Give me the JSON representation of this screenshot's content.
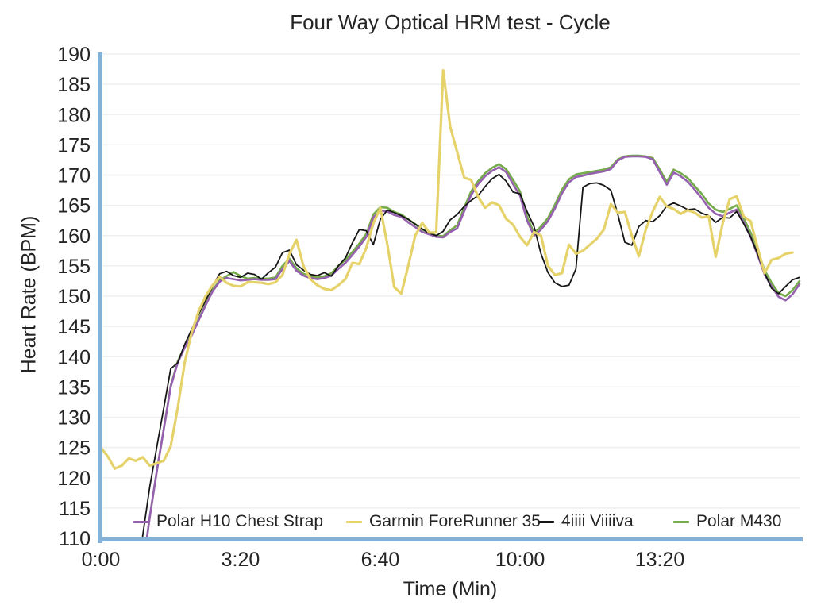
{
  "title": "Four Way Optical HRM test - Cycle",
  "axes": {
    "y_label": "Heart Rate (BPM)",
    "x_label": "Time (Min)",
    "y_tick_values": [
      110,
      115,
      120,
      125,
      130,
      135,
      140,
      145,
      150,
      155,
      160,
      165,
      170,
      175,
      180,
      185,
      190
    ],
    "x_ticks": [
      {
        "t": 0,
        "label": "0:00"
      },
      {
        "t": 200,
        "label": "3:20"
      },
      {
        "t": 400,
        "label": "6:40"
      },
      {
        "t": 600,
        "label": "10:00"
      },
      {
        "t": 800,
        "label": "13:20"
      }
    ]
  },
  "colors": {
    "axis_blue": "#84b1d8",
    "gridline": "#efefef",
    "text": "#242424",
    "background": "#ffffff"
  },
  "chart_data": {
    "type": "line",
    "title": "Four Way Optical HRM test - Cycle",
    "xlabel": "Time (Min)",
    "ylabel": "Heart Rate (BPM)",
    "ylim": [
      110,
      190
    ],
    "xlim_seconds": [
      0,
      1000
    ],
    "grid": "horizontal gridlines every 5 BPM, no vertical gridlines",
    "legend_position": "inside plot, bottom, horizontal row",
    "x_seconds": [
      0,
      10,
      20,
      30,
      40,
      50,
      60,
      70,
      80,
      90,
      100,
      110,
      120,
      130,
      140,
      150,
      160,
      170,
      180,
      190,
      200,
      210,
      220,
      230,
      240,
      250,
      260,
      270,
      280,
      290,
      300,
      310,
      320,
      330,
      340,
      350,
      360,
      370,
      380,
      390,
      400,
      410,
      420,
      430,
      440,
      450,
      460,
      470,
      480,
      490,
      500,
      510,
      520,
      530,
      540,
      550,
      560,
      570,
      580,
      590,
      600,
      610,
      620,
      630,
      640,
      650,
      660,
      670,
      680,
      690,
      700,
      710,
      720,
      730,
      740,
      750,
      760,
      770,
      780,
      790,
      800,
      810,
      820,
      830,
      840,
      850,
      860,
      870,
      880,
      890,
      900,
      910,
      920,
      930,
      940,
      950,
      960,
      970,
      980,
      990,
      1000
    ],
    "series": [
      {
        "name": "Polar H10 Chest Strap",
        "color": "#9660b0",
        "line_width": 2.6,
        "z": 2,
        "values": [
          null,
          null,
          null,
          null,
          null,
          null,
          105,
          113.5,
          121,
          128,
          135,
          139,
          141.5,
          143.5,
          146,
          148.5,
          150.8,
          152.4,
          153,
          152.8,
          152.6,
          152.7,
          152.8,
          152.7,
          152.7,
          152.8,
          154.5,
          155.8,
          154.2,
          153.4,
          153,
          152.8,
          153,
          153.4,
          154.5,
          155.5,
          156.8,
          158.2,
          159.8,
          163,
          164.1,
          164,
          163.4,
          163.1,
          162.2,
          161.4,
          160.6,
          160.2,
          159.8,
          159.7,
          160.6,
          161.2,
          164,
          166.7,
          168.5,
          169.8,
          170.7,
          171.3,
          170.5,
          168.5,
          166.6,
          162.5,
          160,
          161,
          162.4,
          164.5,
          167,
          168.8,
          169.7,
          169.9,
          170.2,
          170.4,
          170.6,
          171,
          172.4,
          173,
          173.1,
          173.1,
          173,
          172.6,
          170.5,
          168.4,
          170.4,
          169.8,
          168.9,
          167.6,
          166.2,
          164.6,
          163.6,
          163.2,
          163.8,
          164.3,
          162.2,
          159.8,
          156.8,
          153.6,
          151.6,
          149.9,
          149.3,
          150.3,
          152
        ]
      },
      {
        "name": "Garmin ForeRunner 35",
        "color": "#e6d26a",
        "line_width": 3.2,
        "z": 4,
        "values": [
          125,
          123.5,
          121.5,
          122,
          123.2,
          122.8,
          123.4,
          122,
          122.4,
          122.8,
          125.2,
          131.5,
          139,
          144,
          147.5,
          150,
          151.8,
          153.2,
          152.2,
          151.7,
          151.6,
          152.3,
          152.3,
          152.2,
          152,
          152.3,
          153.5,
          157,
          159.3,
          155,
          152.8,
          151.8,
          151.2,
          151,
          151.8,
          152.8,
          155.5,
          155.3,
          158,
          162,
          164.6,
          158.6,
          151.5,
          150.4,
          155,
          160,
          162.1,
          160.5,
          160.5,
          187.3,
          178,
          173.8,
          169.6,
          169.2,
          166.4,
          164.6,
          165.5,
          165,
          162.8,
          161.8,
          159.8,
          158.4,
          160.6,
          160,
          155,
          153.5,
          153.8,
          158.5,
          157,
          157.5,
          158.5,
          159.5,
          161,
          165.2,
          163.8,
          163.9,
          160,
          156.6,
          161,
          164,
          166.4,
          164.8,
          164.4,
          163.6,
          164.2,
          163.8,
          163,
          163.2,
          156.5,
          162,
          166,
          166.5,
          163.2,
          162.4,
          158,
          153.8,
          156,
          156.3,
          157,
          157.2,
          null
        ]
      },
      {
        "name": "4iiii Viiiiva",
        "color": "#161616",
        "line_width": 1.8,
        "z": 3,
        "values": [
          null,
          null,
          null,
          null,
          null,
          103,
          110.5,
          118.5,
          125,
          131.5,
          138,
          139,
          142,
          144.5,
          147,
          149.3,
          151.6,
          153.7,
          154.1,
          153.4,
          153.1,
          153.8,
          153.6,
          152.8,
          153.9,
          154.8,
          157.2,
          157.6,
          155.2,
          154.3,
          153.6,
          153.4,
          153.9,
          153.3,
          155,
          156.3,
          158.8,
          161,
          160.8,
          158.5,
          162.7,
          164.2,
          163.8,
          163.3,
          162.7,
          161.9,
          161.1,
          160.4,
          160,
          160.7,
          162.6,
          163.5,
          164.8,
          165.8,
          166.6,
          168.1,
          169.4,
          170.1,
          169,
          167.2,
          166.9,
          164,
          161.5,
          157,
          153.9,
          152.2,
          151.6,
          151.8,
          154.5,
          168,
          168.6,
          168.7,
          168.3,
          167.5,
          163.5,
          158.9,
          158.4,
          161.5,
          162.5,
          162.3,
          163.3,
          164.9,
          165.4,
          164.9,
          164.3,
          164.4,
          163.7,
          163.3,
          162.2,
          163,
          162.9,
          164,
          162,
          159.8,
          157,
          153.8,
          151.3,
          150.4,
          151.6,
          152.7,
          153.1
        ]
      },
      {
        "name": "Polar M430",
        "color": "#76ab4b",
        "line_width": 2.6,
        "z": 1,
        "values": [
          null,
          null,
          null,
          null,
          null,
          null,
          105,
          113.5,
          121,
          128,
          135.2,
          139.2,
          141.7,
          143.7,
          146.2,
          148.7,
          151,
          152.6,
          153.3,
          154,
          153.3,
          152.9,
          153,
          152.9,
          152.9,
          153.1,
          155,
          156.2,
          154.6,
          153.7,
          153.3,
          153.1,
          153.3,
          153.8,
          155,
          156,
          157.3,
          158.7,
          160.3,
          163.5,
          164.7,
          164.6,
          163.9,
          163.5,
          162.7,
          161.9,
          161,
          160.5,
          160,
          159.9,
          160.9,
          161.7,
          164.6,
          167.3,
          169,
          170.3,
          171.2,
          171.8,
          171,
          169.2,
          167.3,
          163.2,
          160.4,
          161.5,
          162.9,
          165.1,
          167.6,
          169.3,
          170.1,
          170.3,
          170.5,
          170.7,
          170.9,
          171.3,
          172.6,
          173.1,
          173.2,
          173.2,
          173.1,
          172.8,
          170.9,
          168.9,
          170.9,
          170.3,
          169.5,
          168.2,
          166.9,
          165.3,
          164.3,
          163.9,
          164.4,
          165,
          162.9,
          160.5,
          157.5,
          154.3,
          152.2,
          150.5,
          150,
          151,
          152.5
        ]
      }
    ]
  }
}
